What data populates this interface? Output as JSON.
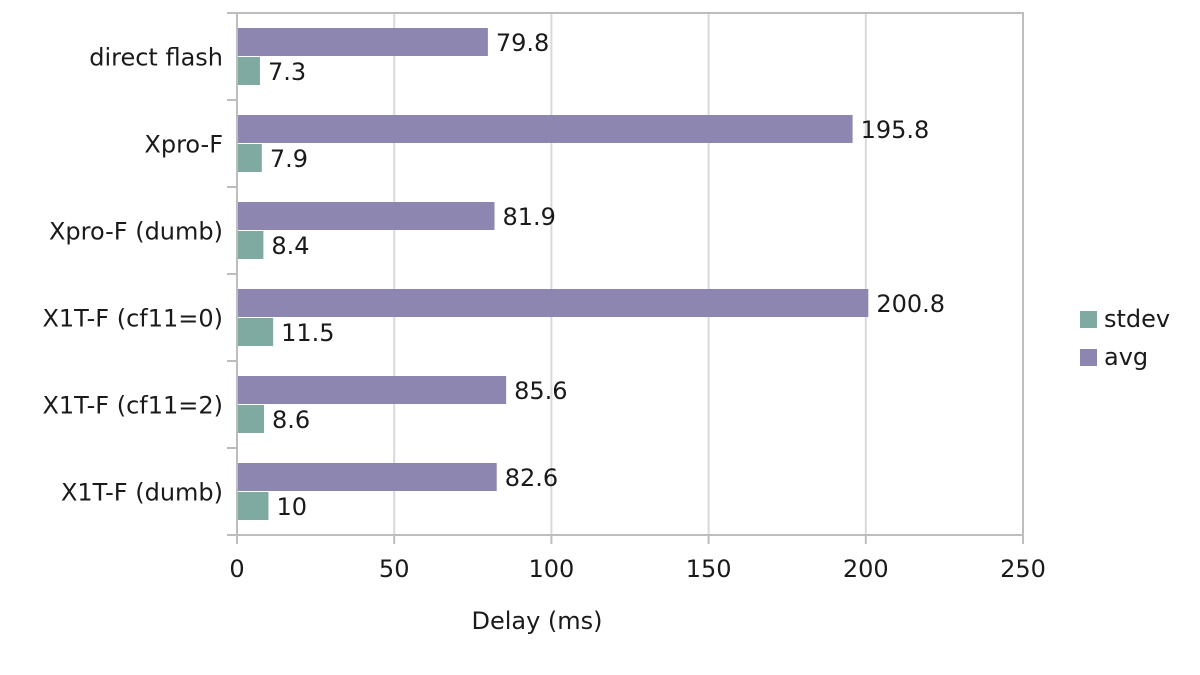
{
  "chart_data": {
    "type": "bar",
    "orientation": "horizontal",
    "categories": [
      "direct flash",
      "Xpro-F",
      "Xpro-F (dumb)",
      "X1T-F (cf11=0)",
      "X1T-F (cf11=2)",
      "X1T-F (dumb)"
    ],
    "series": [
      {
        "name": "avg",
        "color": "#8c86b0",
        "values": [
          79.8,
          195.8,
          81.9,
          200.8,
          85.6,
          82.6
        ],
        "labels": [
          "79.8",
          "195.8",
          "81.9",
          "200.8",
          "85.6",
          "82.6"
        ]
      },
      {
        "name": "stdev",
        "color": "#7faaa2",
        "values": [
          7.3,
          7.9,
          8.4,
          11.5,
          8.6,
          10
        ],
        "labels": [
          "7.3",
          "7.9",
          "8.4",
          "11.5",
          "8.6",
          "10"
        ]
      }
    ],
    "xlabel": "Delay (ms)",
    "ylabel": "",
    "xlim": [
      0,
      250
    ],
    "xticks": [
      0,
      50,
      100,
      150,
      200,
      250
    ],
    "xtick_labels": [
      "0",
      "50",
      "100",
      "150",
      "200",
      "250"
    ],
    "grid": "vertical",
    "legend": {
      "placement": "right",
      "items": [
        "stdev",
        "avg"
      ]
    }
  }
}
